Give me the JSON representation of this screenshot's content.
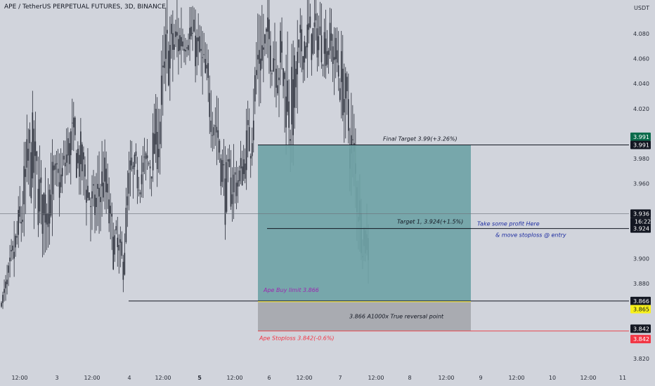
{
  "header": {
    "symbol_title": "APE / TetherUS PERPETUAL FUTURES, 3D, BINANCE",
    "currency": "USDT"
  },
  "colors": {
    "background": "#d1d4dc",
    "candle": "#2a2e39",
    "profit_zone": "#6fa3a6",
    "loss_zone": "#a9abb1",
    "stop_line": "#e8474f",
    "entry_line": "#f2e64a",
    "label_dark": "#131722",
    "label_green": "#0b6b4b",
    "label_red": "#f23645",
    "label_yellow": "#f7f01a",
    "annotation_blue": "#1c2ba0",
    "annotation_purple": "#9c27b0"
  },
  "chart_data": {
    "type": "candlestick",
    "y_range": [
      3.812,
      4.107
    ],
    "y_ticks": [
      "4.080",
      "4.060",
      "4.040",
      "4.020",
      "3.980",
      "3.960",
      "3.900",
      "3.880",
      "3.820"
    ],
    "x_ticks": [
      "12:00",
      "3",
      "12:00",
      "4",
      "12:00",
      "5",
      "12:00",
      "6",
      "12:00",
      "7",
      "12:00",
      "8",
      "12:00",
      "9",
      "12:00",
      "10",
      "12:00",
      "11"
    ],
    "x_ticks_bold": [
      "5"
    ],
    "candle_envelope": [
      {
        "t": 0.0,
        "lo": 3.86,
        "hi": 3.87
      },
      {
        "t": 0.02,
        "lo": 3.858,
        "hi": 3.905
      },
      {
        "t": 0.05,
        "lo": 3.89,
        "hi": 3.96
      },
      {
        "t": 0.08,
        "lo": 3.925,
        "hi": 4.045
      },
      {
        "t": 0.11,
        "lo": 3.9,
        "hi": 3.98
      },
      {
        "t": 0.13,
        "lo": 3.91,
        "hi": 4.0
      },
      {
        "t": 0.16,
        "lo": 3.935,
        "hi": 3.985
      },
      {
        "t": 0.19,
        "lo": 3.96,
        "hi": 4.03
      },
      {
        "t": 0.22,
        "lo": 3.94,
        "hi": 4.01
      },
      {
        "t": 0.25,
        "lo": 3.905,
        "hi": 3.97
      },
      {
        "t": 0.28,
        "lo": 3.93,
        "hi": 4.0
      },
      {
        "t": 0.3,
        "lo": 3.885,
        "hi": 3.95
      },
      {
        "t": 0.33,
        "lo": 3.866,
        "hi": 3.92
      },
      {
        "t": 0.35,
        "lo": 3.935,
        "hi": 3.995
      },
      {
        "t": 0.38,
        "lo": 3.945,
        "hi": 3.99
      },
      {
        "t": 0.41,
        "lo": 3.95,
        "hi": 4.01
      },
      {
        "t": 0.43,
        "lo": 3.96,
        "hi": 4.05
      },
      {
        "t": 0.45,
        "lo": 4.02,
        "hi": 4.107
      },
      {
        "t": 0.48,
        "lo": 4.04,
        "hi": 4.107
      },
      {
        "t": 0.51,
        "lo": 4.06,
        "hi": 4.107
      },
      {
        "t": 0.54,
        "lo": 4.03,
        "hi": 4.095
      },
      {
        "t": 0.57,
        "lo": 3.99,
        "hi": 4.06
      },
      {
        "t": 0.59,
        "lo": 3.97,
        "hi": 4.03
      },
      {
        "t": 0.61,
        "lo": 3.915,
        "hi": 3.99
      },
      {
        "t": 0.63,
        "lo": 3.93,
        "hi": 3.992
      },
      {
        "t": 0.65,
        "lo": 3.94,
        "hi": 3.99
      },
      {
        "t": 0.68,
        "lo": 3.965,
        "hi": 4.04
      },
      {
        "t": 0.7,
        "lo": 4.02,
        "hi": 4.107
      },
      {
        "t": 0.73,
        "lo": 4.04,
        "hi": 4.107
      },
      {
        "t": 0.76,
        "lo": 4.01,
        "hi": 4.105
      },
      {
        "t": 0.79,
        "lo": 3.96,
        "hi": 4.07
      },
      {
        "t": 0.82,
        "lo": 4.04,
        "hi": 4.107
      },
      {
        "t": 0.86,
        "lo": 4.05,
        "hi": 4.107
      },
      {
        "t": 0.9,
        "lo": 4.04,
        "hi": 4.1
      },
      {
        "t": 0.93,
        "lo": 4.0,
        "hi": 4.08
      },
      {
        "t": 0.96,
        "lo": 3.93,
        "hi": 4.02
      },
      {
        "t": 0.98,
        "lo": 3.895,
        "hi": 3.96
      },
      {
        "t": 1.0,
        "lo": 3.88,
        "hi": 3.94
      }
    ],
    "current_price": 3.936,
    "countdown": "16:22",
    "levels": [
      {
        "name": "final-target",
        "price": 3.991,
        "text": "Final Target 3.99(+3.26%)",
        "tag": "3.991"
      },
      {
        "name": "target-1",
        "price": 3.924,
        "text": "Target 1, 3.924(+1.5%)",
        "tag": "3.924"
      },
      {
        "name": "entry",
        "price": 3.866,
        "text": "Ape Buy limit 3.866",
        "tag": "3.866"
      },
      {
        "name": "entry-tag-2",
        "price": 3.865,
        "tag": "3.865"
      },
      {
        "name": "stoploss",
        "price": 3.842,
        "text": "Ape Stoploss 3.842(-0.6%)",
        "tag": "3.842"
      }
    ],
    "right_tags": [
      "3.991",
      "3.991",
      "3.936",
      "3.924",
      "3.866",
      "3.865",
      "3.842",
      "3.842"
    ],
    "annotations": [
      "Take some profit Here",
      "& move stoploss @ entry",
      "3.866 A1000x True reversal point"
    ]
  }
}
